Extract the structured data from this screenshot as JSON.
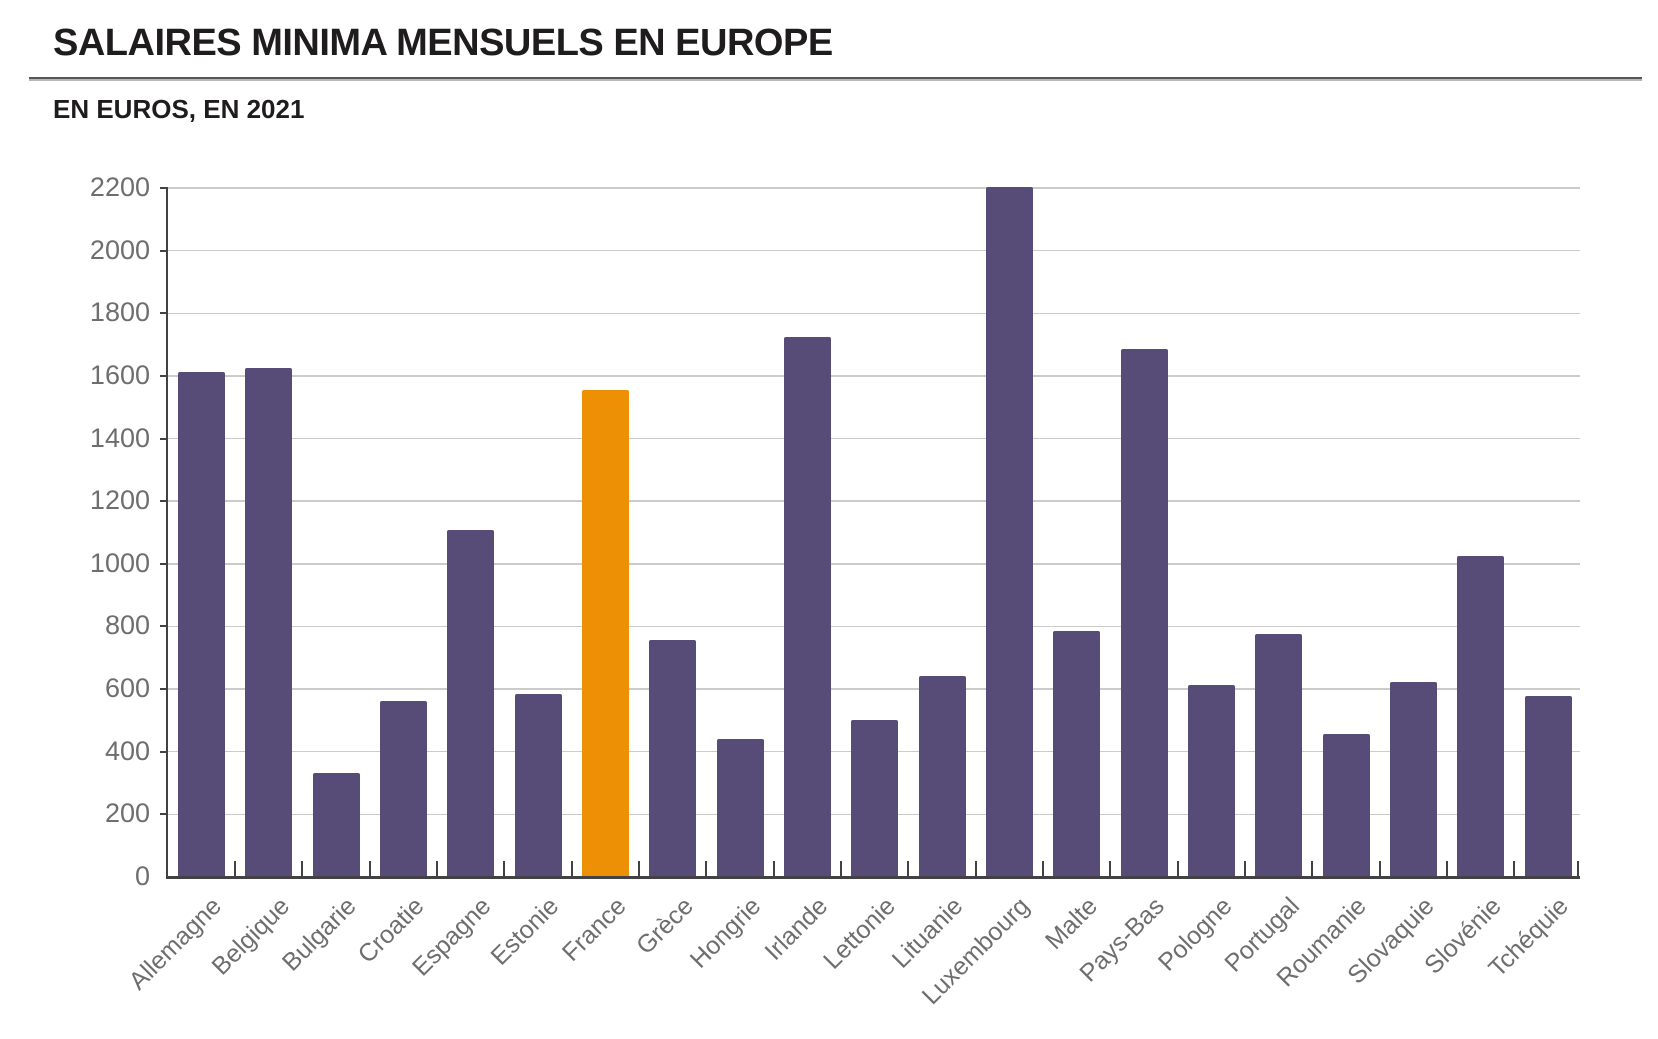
{
  "header": {
    "title": "SALAIRES MINIMA MENSUELS EN EUROPE",
    "subtitle": "EN EUROS, EN 2021"
  },
  "chart_data": {
    "type": "bar",
    "title": "SALAIRES MINIMA MENSUELS EN EUROPE",
    "subtitle": "EN EUROS, EN 2021",
    "unit": "euros",
    "year": "2021",
    "categories": [
      "Allemagne",
      "Belgique",
      "Bulgarie",
      "Croatie",
      "Espagne",
      "Estonie",
      "France",
      "Grèce",
      "Hongrie",
      "Irlande",
      "Lettonie",
      "Lituanie",
      "Luxembourg",
      "Malte",
      "Pays-Bas",
      "Pologne",
      "Portugal",
      "Roumanie",
      "Slovaquie",
      "Slovénie",
      "Tchéquie"
    ],
    "values": [
      1614,
      1626,
      332,
      563,
      1108,
      584,
      1555,
      758,
      442,
      1724,
      500,
      642,
      2202,
      785,
      1685,
      614,
      776,
      458,
      623,
      1024,
      579
    ],
    "highlight_category": "France",
    "highlight_index": 6,
    "xlabel": "",
    "ylabel": "",
    "ylim": [
      0,
      2200
    ],
    "ytick_step": 200,
    "ytick_labels": [
      "0",
      "200",
      "400",
      "600",
      "800",
      "1000",
      "1200",
      "1400",
      "1600",
      "1800",
      "2000",
      "2200"
    ],
    "grid": true,
    "legend": false,
    "colors": {
      "bar": "#574b78",
      "highlight": "#ee9005",
      "grid": "#cbcbcb",
      "axis": "#424144",
      "tick_label": "#6e6e6e",
      "title": "#1f1c1d"
    }
  }
}
